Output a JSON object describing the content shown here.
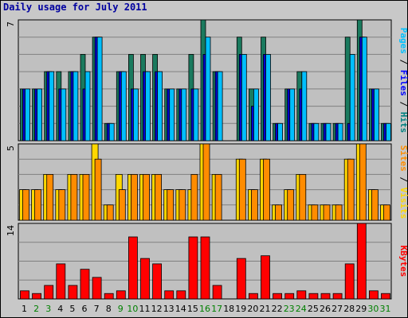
{
  "chart_data": [
    {
      "type": "bar",
      "title": "Daily usage for July 2011",
      "categories": [
        "1",
        "2",
        "3",
        "4",
        "5",
        "6",
        "7",
        "8",
        "9",
        "10",
        "11",
        "12",
        "13",
        "14",
        "15",
        "16",
        "17",
        "18",
        "19",
        "20",
        "21",
        "22",
        "23",
        "24",
        "25",
        "26",
        "27",
        "28",
        "29",
        "30",
        "31"
      ],
      "weekend_days": [
        "2",
        "3",
        "9",
        "10",
        "16",
        "17",
        "23",
        "24",
        "30",
        "31"
      ],
      "ymax_label": "7",
      "ylim": [
        0,
        7
      ],
      "grid": true,
      "axis_label_parts": [
        {
          "text": "Pages",
          "color": "#00c0ff"
        },
        {
          "text": " / ",
          "color": "#000000"
        },
        {
          "text": "Files",
          "color": "#0000ff"
        },
        {
          "text": " / ",
          "color": "#000000"
        },
        {
          "text": "Hits",
          "color": "#008080"
        }
      ],
      "series": [
        {
          "name": "Hits",
          "color": "#1a7a5e",
          "values": [
            3,
            3,
            4,
            4,
            4,
            5,
            6,
            1,
            4,
            5,
            5,
            5,
            3,
            3,
            5,
            7,
            4,
            0,
            6,
            3,
            6,
            1,
            3,
            4,
            1,
            1,
            1,
            6,
            7,
            3,
            1
          ]
        },
        {
          "name": "Files",
          "color": "#0000d0",
          "values": [
            3,
            3,
            4,
            3,
            4,
            3,
            6,
            1,
            4,
            3,
            4,
            4,
            3,
            3,
            3,
            5,
            4,
            0,
            5,
            2,
            5,
            1,
            3,
            3,
            1,
            1,
            1,
            1,
            6,
            3,
            1
          ]
        },
        {
          "name": "Pages",
          "color": "#00bfff",
          "values": [
            3,
            3,
            4,
            3,
            4,
            4,
            6,
            1,
            4,
            3,
            4,
            4,
            3,
            3,
            3,
            6,
            4,
            0,
            5,
            3,
            5,
            1,
            3,
            4,
            1,
            1,
            1,
            5,
            6,
            3,
            1
          ]
        }
      ]
    },
    {
      "type": "bar",
      "ymax_label": "5",
      "ylim": [
        0,
        5
      ],
      "grid": true,
      "axis_label_parts": [
        {
          "text": "Sites",
          "color": "#ff8c00"
        },
        {
          "text": " / ",
          "color": "#000000"
        },
        {
          "text": "Visits",
          "color": "#ffd700"
        }
      ],
      "series": [
        {
          "name": "Visits",
          "color": "#ffd700",
          "values": [
            2,
            2,
            3,
            2,
            3,
            3,
            5,
            1,
            3,
            3,
            3,
            3,
            2,
            2,
            2,
            5,
            3,
            0,
            4,
            2,
            4,
            1,
            2,
            3,
            1,
            1,
            1,
            4,
            5,
            2,
            1
          ]
        },
        {
          "name": "Sites",
          "color": "#ff8c00",
          "values": [
            2,
            2,
            3,
            2,
            3,
            3,
            4,
            1,
            2,
            3,
            3,
            3,
            2,
            2,
            3,
            5,
            3,
            0,
            4,
            2,
            4,
            1,
            2,
            3,
            1,
            1,
            1,
            4,
            5,
            2,
            1
          ]
        }
      ]
    },
    {
      "type": "bar",
      "ymax_label": "14",
      "ylim": [
        0,
        14
      ],
      "grid": true,
      "axis_label_parts": [
        {
          "text": "KBytes",
          "color": "#ff0000"
        }
      ],
      "series": [
        {
          "name": "KBytes",
          "color": "#ff0000",
          "values": [
            1.5,
            1,
            2.5,
            6.5,
            2.5,
            5.5,
            4,
            1,
            1.5,
            11.5,
            7.5,
            6.5,
            1.5,
            1.5,
            11.5,
            11.5,
            2.5,
            0,
            7.5,
            1,
            8,
            1,
            1,
            1.5,
            1,
            1,
            1,
            6.5,
            14,
            1.5,
            1
          ]
        }
      ]
    }
  ]
}
